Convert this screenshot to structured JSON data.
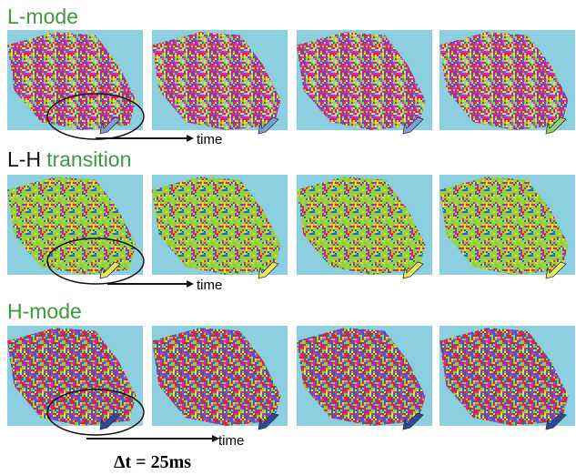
{
  "rows": [
    {
      "title_parts": [
        "L-mode"
      ],
      "time_label": "time"
    },
    {
      "title_parts": [
        "L-H",
        "transition"
      ],
      "time_label": "time"
    },
    {
      "title_parts": [
        "H-mode"
      ],
      "time_label": "time"
    }
  ],
  "footer": "Δt = 25ms"
}
